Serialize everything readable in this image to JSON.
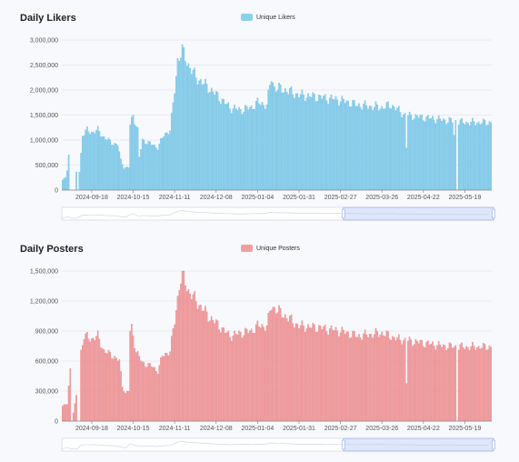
{
  "charts": [
    {
      "title": "Daily Likers",
      "legend": "Unique Likers",
      "color": "#8dd0ec",
      "stroke": "#5bb5de",
      "ytick_labels": [
        "0",
        "500,000",
        "1,000,000",
        "1,500,000",
        "2,000,000",
        "2,500,000",
        "3,000,000"
      ],
      "xtick_labels": [
        "2024-09-18",
        "2024-10-15",
        "2024-11-11",
        "2024-12-08",
        "2025-01-04",
        "2025-01-31",
        "2025-02-27",
        "2025-03-26",
        "2025-04-22",
        "2025-05-19"
      ]
    },
    {
      "title": "Daily Posters",
      "legend": "Unique Posters",
      "color": "#f29ea0",
      "stroke": "#e0797b",
      "ytick_labels": [
        "0",
        "300,000",
        "600,000",
        "900,000",
        "1,200,000",
        "1,500,000"
      ],
      "xtick_labels": [
        "2024-09-18",
        "2024-10-15",
        "2024-11-11",
        "2024-12-08",
        "2025-01-04",
        "2025-01-31",
        "2025-02-27",
        "2025-03-26",
        "2025-04-22",
        "2025-05-19"
      ]
    }
  ],
  "chart_data": [
    {
      "type": "bar",
      "title": "Daily Likers",
      "x_start": "2024-08-30",
      "x_end": "2025-06-05",
      "xticks": [
        "2024-09-18",
        "2024-10-15",
        "2024-11-11",
        "2024-12-08",
        "2025-01-04",
        "2025-01-31",
        "2025-02-27",
        "2025-03-26",
        "2025-04-22",
        "2025-05-19"
      ],
      "ylim": [
        0,
        3000000
      ],
      "yticks": [
        0,
        500000,
        1000000,
        1500000,
        2000000,
        2500000,
        3000000
      ],
      "grid": true,
      "legend_position": "top-center",
      "series": [
        {
          "name": "Unique Likers",
          "color": "#8dd0ec",
          "anchors": [
            [
              "2024-08-30",
              200000
            ],
            [
              "2024-09-01",
              250000
            ],
            [
              "2024-09-02",
              400000
            ],
            [
              "2024-09-03",
              700000
            ],
            [
              "2024-09-04",
              0
            ],
            [
              "2024-09-07",
              0
            ],
            [
              "2024-09-08",
              350000
            ],
            [
              "2024-09-09",
              0
            ],
            [
              "2024-09-12",
              1100000
            ],
            [
              "2024-09-15",
              1200000
            ],
            [
              "2024-09-18",
              1150000
            ],
            [
              "2024-09-22",
              1200000
            ],
            [
              "2024-09-26",
              1050000
            ],
            [
              "2024-10-01",
              950000
            ],
            [
              "2024-10-05",
              900000
            ],
            [
              "2024-10-07",
              600000
            ],
            [
              "2024-10-09",
              450000
            ],
            [
              "2024-10-12",
              450000
            ],
            [
              "2024-10-13",
              1300000
            ],
            [
              "2024-10-15",
              1500000
            ],
            [
              "2024-10-18",
              1200000
            ],
            [
              "2024-10-19",
              650000
            ],
            [
              "2024-10-21",
              1000000
            ],
            [
              "2024-10-28",
              900000
            ],
            [
              "2024-10-31",
              850000
            ],
            [
              "2024-11-04",
              1100000
            ],
            [
              "2024-11-08",
              1200000
            ],
            [
              "2024-11-10",
              1700000
            ],
            [
              "2024-11-13",
              2600000
            ],
            [
              "2024-11-16",
              2780000
            ],
            [
              "2024-11-20",
              2500000
            ],
            [
              "2024-11-25",
              2250000
            ],
            [
              "2024-12-03",
              2050000
            ],
            [
              "2024-12-10",
              1850000
            ],
            [
              "2024-12-17",
              1650000
            ],
            [
              "2024-12-24",
              1600000
            ],
            [
              "2024-12-31",
              1650000
            ],
            [
              "2025-01-04",
              1750000
            ],
            [
              "2025-01-10",
              1700000
            ],
            [
              "2025-01-13",
              2250000
            ],
            [
              "2025-01-15",
              2050000
            ],
            [
              "2025-01-22",
              2000000
            ],
            [
              "2025-01-31",
              1900000
            ],
            [
              "2025-02-15",
              1850000
            ],
            [
              "2025-02-27",
              1800000
            ],
            [
              "2025-03-10",
              1700000
            ],
            [
              "2025-03-26",
              1650000
            ],
            [
              "2025-04-01",
              1700000
            ],
            [
              "2025-04-10",
              1500000
            ],
            [
              "2025-04-22",
              1450000
            ],
            [
              "2025-05-05",
              1400000
            ],
            [
              "2025-05-19",
              1350000
            ],
            [
              "2025-06-05",
              1350000
            ]
          ],
          "dips": [
            [
              "2025-04-11",
              850000
            ],
            [
              "2025-05-12",
              1100000
            ],
            [
              "2025-05-14",
              0
            ]
          ]
        }
      ]
    },
    {
      "type": "bar",
      "title": "Daily Posters",
      "x_start": "2024-08-30",
      "x_end": "2025-06-05",
      "xticks": [
        "2024-09-18",
        "2024-10-15",
        "2024-11-11",
        "2024-12-08",
        "2025-01-04",
        "2025-01-31",
        "2025-02-27",
        "2025-03-26",
        "2025-04-22",
        "2025-05-19"
      ],
      "ylim": [
        0,
        1500000
      ],
      "yticks": [
        0,
        300000,
        600000,
        900000,
        1200000,
        1500000
      ],
      "grid": true,
      "legend_position": "top-center",
      "series": [
        {
          "name": "Unique Posters",
          "color": "#f29ea0",
          "anchors": [
            [
              "2024-08-30",
              150000
            ],
            [
              "2024-09-02",
              170000
            ],
            [
              "2024-09-03",
              350000
            ],
            [
              "2024-09-04",
              520000
            ],
            [
              "2024-09-05",
              0
            ],
            [
              "2024-09-08",
              250000
            ],
            [
              "2024-09-09",
              0
            ],
            [
              "2024-09-10",
              0
            ],
            [
              "2024-09-11",
              700000
            ],
            [
              "2024-09-13",
              850000
            ],
            [
              "2024-09-18",
              820000
            ],
            [
              "2024-09-22",
              850000
            ],
            [
              "2024-09-26",
              700000
            ],
            [
              "2024-10-02",
              650000
            ],
            [
              "2024-10-06",
              600000
            ],
            [
              "2024-10-08",
              350000
            ],
            [
              "2024-10-10",
              280000
            ],
            [
              "2024-10-12",
              300000
            ],
            [
              "2024-10-13",
              900000
            ],
            [
              "2024-10-14",
              930000
            ],
            [
              "2024-10-17",
              700000
            ],
            [
              "2024-10-21",
              580000
            ],
            [
              "2024-10-27",
              550000
            ],
            [
              "2024-10-31",
              500000
            ],
            [
              "2024-11-03",
              650000
            ],
            [
              "2024-11-08",
              700000
            ],
            [
              "2024-11-11",
              1000000
            ],
            [
              "2024-11-14",
              1350000
            ],
            [
              "2024-11-16",
              1480000
            ],
            [
              "2024-11-20",
              1300000
            ],
            [
              "2024-11-25",
              1200000
            ],
            [
              "2024-12-03",
              1050000
            ],
            [
              "2024-12-10",
              950000
            ],
            [
              "2024-12-17",
              850000
            ],
            [
              "2024-12-24",
              880000
            ],
            [
              "2024-12-31",
              900000
            ],
            [
              "2025-01-04",
              950000
            ],
            [
              "2025-01-10",
              950000
            ],
            [
              "2025-01-13",
              1150000
            ],
            [
              "2025-01-22",
              1050000
            ],
            [
              "2025-01-31",
              950000
            ],
            [
              "2025-02-15",
              930000
            ],
            [
              "2025-02-27",
              900000
            ],
            [
              "2025-03-10",
              850000
            ],
            [
              "2025-03-26",
              880000
            ],
            [
              "2025-04-05",
              820000
            ],
            [
              "2025-04-22",
              780000
            ],
            [
              "2025-05-05",
              750000
            ],
            [
              "2025-05-19",
              740000
            ],
            [
              "2025-06-05",
              740000
            ]
          ],
          "dips": [
            [
              "2025-04-11",
              380000
            ],
            [
              "2025-05-14",
              0
            ]
          ]
        }
      ]
    }
  ]
}
